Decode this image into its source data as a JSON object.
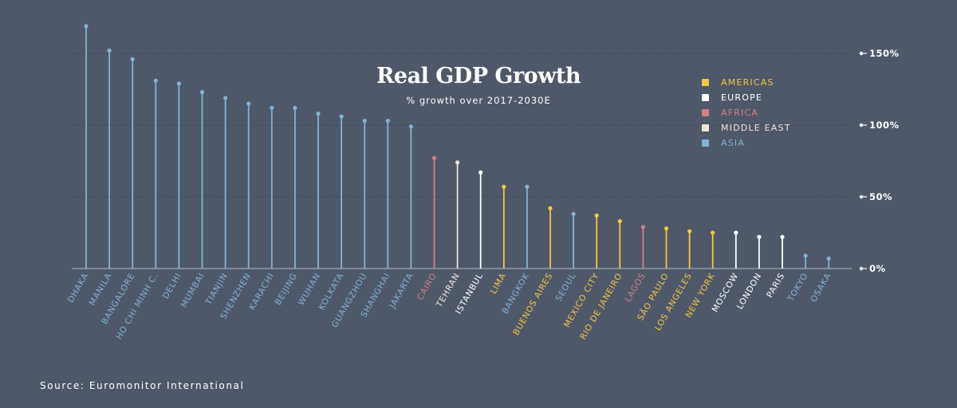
{
  "source": "Source: Euromonitor International",
  "chart_data": {
    "type": "lollipop",
    "title": "Real GDP Growth",
    "subtitle": "% growth over 2017-2030E",
    "ylim": [
      0,
      160
    ],
    "yticks": [
      {
        "value": 0,
        "label": "0%"
      },
      {
        "value": 50,
        "label": "50%"
      },
      {
        "value": 100,
        "label": "100%"
      },
      {
        "value": 150,
        "label": "150%"
      }
    ],
    "grid": true,
    "legend_position": "top-right",
    "regions": [
      {
        "key": "americas",
        "label": "AMERICAS",
        "color": "#f2c64a"
      },
      {
        "key": "europe",
        "label": "EUROPE",
        "color": "#ffffff"
      },
      {
        "key": "africa",
        "label": "AFRICA",
        "color": "#d27f86"
      },
      {
        "key": "middle_east",
        "label": "MIDDLE EAST",
        "color": "#f1e4d6"
      },
      {
        "key": "asia",
        "label": "ASIA",
        "color": "#7fb2d6"
      }
    ],
    "points": [
      {
        "city": "DHAKA",
        "value": 169,
        "region": "asia"
      },
      {
        "city": "MANILA",
        "value": 152,
        "region": "asia"
      },
      {
        "city": "BANGALORE",
        "value": 146,
        "region": "asia"
      },
      {
        "city": "HO CHI MINH C.",
        "value": 131,
        "region": "asia"
      },
      {
        "city": "DELHI",
        "value": 129,
        "region": "asia"
      },
      {
        "city": "MUMBAI",
        "value": 123,
        "region": "asia"
      },
      {
        "city": "TIANJIN",
        "value": 119,
        "region": "asia"
      },
      {
        "city": "SHENZHEN",
        "value": 115,
        "region": "asia"
      },
      {
        "city": "KARACHI",
        "value": 112,
        "region": "asia"
      },
      {
        "city": "BEIJING",
        "value": 112,
        "region": "asia"
      },
      {
        "city": "WUHAN",
        "value": 108,
        "region": "asia"
      },
      {
        "city": "KOLKATA",
        "value": 106,
        "region": "asia"
      },
      {
        "city": "GUANGZHOU",
        "value": 103,
        "region": "asia"
      },
      {
        "city": "SHANGHAI",
        "value": 103,
        "region": "asia"
      },
      {
        "city": "JAKARTA",
        "value": 99,
        "region": "asia"
      },
      {
        "city": "CAIRO",
        "value": 77,
        "region": "africa"
      },
      {
        "city": "TEHRAN",
        "value": 74,
        "region": "middle_east"
      },
      {
        "city": "ISTANBUL",
        "value": 67,
        "region": "europe"
      },
      {
        "city": "LIMA",
        "value": 57,
        "region": "americas"
      },
      {
        "city": "BANGKOK",
        "value": 57,
        "region": "asia"
      },
      {
        "city": "BUENOS AIRES",
        "value": 42,
        "region": "americas"
      },
      {
        "city": "SEOUL",
        "value": 38,
        "region": "asia"
      },
      {
        "city": "MEXICO CITY",
        "value": 37,
        "region": "americas"
      },
      {
        "city": "RIO DE JANEIRO",
        "value": 33,
        "region": "americas"
      },
      {
        "city": "LAGOS",
        "value": 29,
        "region": "africa"
      },
      {
        "city": "SÃO PAULO",
        "value": 28,
        "region": "americas"
      },
      {
        "city": "LOS ANGELES",
        "value": 26,
        "region": "americas"
      },
      {
        "city": "NEW YORK",
        "value": 25,
        "region": "americas"
      },
      {
        "city": "MOSCOW",
        "value": 25,
        "region": "europe"
      },
      {
        "city": "LONDON",
        "value": 22,
        "region": "europe"
      },
      {
        "city": "PARIS",
        "value": 22,
        "region": "europe"
      },
      {
        "city": "TOKYO",
        "value": 9,
        "region": "asia"
      },
      {
        "city": "OSAKA",
        "value": 7,
        "region": "asia"
      }
    ]
  }
}
